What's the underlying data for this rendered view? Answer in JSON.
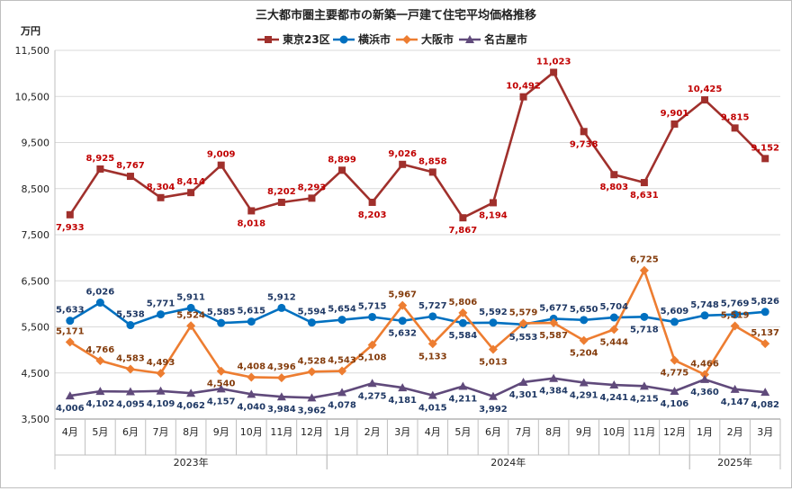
{
  "chart_data": {
    "type": "line",
    "title": "三大都市圏主要都市の新築一戸建て住宅平均価格推移",
    "ylabel": "万円",
    "ylim": [
      3500,
      11500
    ],
    "yticks": [
      "3,500",
      "4,500",
      "5,500",
      "6,500",
      "7,500",
      "8,500",
      "9,500",
      "10,500",
      "11,500"
    ],
    "categories": [
      "4月",
      "5月",
      "6月",
      "7月",
      "8月",
      "9月",
      "10月",
      "11月",
      "12月",
      "1月",
      "2月",
      "3月",
      "4月",
      "5月",
      "6月",
      "7月",
      "8月",
      "9月",
      "10月",
      "11月",
      "12月",
      "1月",
      "2月",
      "3月"
    ],
    "years": [
      {
        "label": "2023年",
        "start": 0,
        "end": 8
      },
      {
        "label": "2024年",
        "start": 9,
        "end": 20
      },
      {
        "label": "2025年",
        "start": 21,
        "end": 23
      }
    ],
    "grid": true,
    "legend_position": "top",
    "series": [
      {
        "name": "東京23区",
        "color": "#a0302c",
        "label_color": "#c00000",
        "marker": "square",
        "values": [
          7933,
          8925,
          8767,
          8304,
          8414,
          9009,
          8018,
          8202,
          8293,
          8899,
          8203,
          9026,
          8858,
          7867,
          8194,
          10492,
          11023,
          9738,
          8803,
          8631,
          9901,
          10425,
          9815,
          9152
        ],
        "labels": [
          "7,933",
          "8,925",
          "8,767",
          "8,304",
          "8,414",
          "9,009",
          "8,018",
          "8,202",
          "8,293",
          "8,899",
          "8,203",
          "9,026",
          "8,858",
          "7,867",
          "8,194",
          "10,492",
          "11,023",
          "9,738",
          "8,803",
          "8,631",
          "9,901",
          "10,425",
          "9,815",
          "9,152"
        ],
        "label_pos": [
          "b",
          "a",
          "a",
          "a",
          "a",
          "a",
          "b",
          "a",
          "a",
          "a",
          "b",
          "a",
          "a",
          "b",
          "b",
          "a",
          "a",
          "b",
          "b",
          "b",
          "a",
          "a",
          "a",
          "a"
        ]
      },
      {
        "name": "横浜市",
        "color": "#0070c0",
        "label_color": "#1f3864",
        "marker": "circle",
        "values": [
          5633,
          6026,
          5538,
          5771,
          5911,
          5585,
          5615,
          5912,
          5594,
          5654,
          5715,
          5632,
          5727,
          5584,
          5592,
          5553,
          5677,
          5650,
          5704,
          5718,
          5609,
          5748,
          5769,
          5826
        ],
        "labels": [
          "5,633",
          "6,026",
          "5,538",
          "5,771",
          "5,911",
          "5,585",
          "5,615",
          "5,912",
          "5,594",
          "5,654",
          "5,715",
          "5,632",
          "5,727",
          "5,584",
          "5,592",
          "5,553",
          "5,677",
          "5,650",
          "5,704",
          "5,718",
          "5,609",
          "5,748",
          "5,769",
          "5,826"
        ],
        "label_pos": [
          "a",
          "a",
          "a",
          "a",
          "a",
          "a",
          "a",
          "a",
          "a",
          "a",
          "a",
          "b",
          "a",
          "b",
          "a",
          "b",
          "a",
          "a",
          "a",
          "b",
          "a",
          "a",
          "a",
          "a"
        ]
      },
      {
        "name": "大阪市",
        "color": "#ed7d31",
        "label_color": "#843c0c",
        "marker": "diamond",
        "values": [
          5171,
          4766,
          4583,
          4493,
          5524,
          4540,
          4408,
          4396,
          4528,
          4543,
          5108,
          5967,
          5133,
          5806,
          5013,
          5579,
          5587,
          5204,
          5444,
          6725,
          4775,
          4466,
          5519,
          5137
        ],
        "labels": [
          "5,171",
          "4,766",
          "4,583",
          "4,493",
          "5,524",
          "4,540",
          "4,408",
          "4,396",
          "4,528",
          "4,543",
          "5,108",
          "5,967",
          "5,133",
          "5,806",
          "5,013",
          "5,579",
          "5,587",
          "5,204",
          "5,444",
          "6,725",
          "4,775",
          "4,466",
          "5,519",
          "5,137"
        ],
        "label_pos": [
          "a",
          "a",
          "a",
          "a",
          "a",
          "b",
          "a",
          "a",
          "a",
          "a",
          "b",
          "a",
          "b",
          "a",
          "b",
          "a",
          "b",
          "b",
          "b",
          "a",
          "b",
          "a",
          "a",
          "a"
        ]
      },
      {
        "name": "名古屋市",
        "color": "#604a7b",
        "label_color": "#1f3864",
        "marker": "triangle",
        "values": [
          4006,
          4102,
          4095,
          4109,
          4062,
          4157,
          4040,
          3984,
          3962,
          4078,
          4275,
          4181,
          4015,
          4211,
          3992,
          4301,
          4384,
          4291,
          4241,
          4215,
          4106,
          4360,
          4147,
          4082
        ],
        "labels": [
          "4,006",
          "4,102",
          "4,095",
          "4,109",
          "4,062",
          "4,157",
          "4,040",
          "3,984",
          "3,962",
          "4,078",
          "4,275",
          "4,181",
          "4,015",
          "4,211",
          "3,992",
          "4,301",
          "4,384",
          "4,291",
          "4,241",
          "4,215",
          "4,106",
          "4,360",
          "4,147",
          "4,082"
        ],
        "label_pos": [
          "b",
          "b",
          "b",
          "b",
          "b",
          "b",
          "b",
          "b",
          "b",
          "b",
          "b",
          "b",
          "b",
          "b",
          "b",
          "b",
          "b",
          "b",
          "b",
          "b",
          "b",
          "b",
          "b",
          "b"
        ]
      }
    ]
  }
}
